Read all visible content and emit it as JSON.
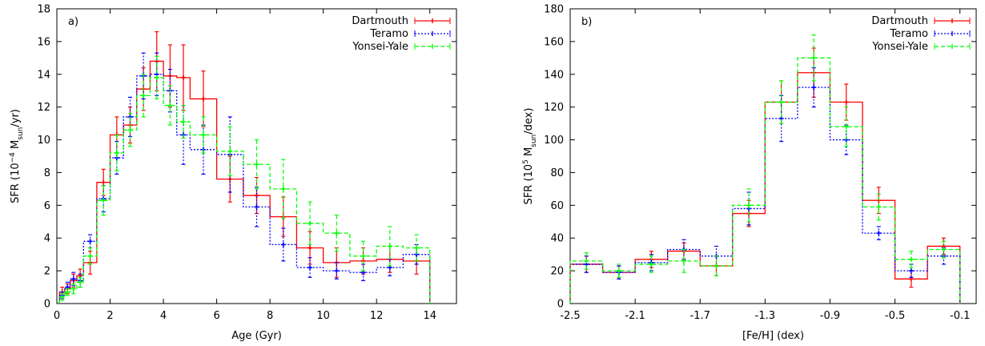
{
  "chart_data": [
    {
      "type": "line",
      "panel_label": "a)",
      "xlabel": "Age (Gyr)",
      "ylabel": {
        "pre": "SFR (10",
        "exp": "−4",
        "mid": " M",
        "sub": "sun",
        "post": "/yr)"
      },
      "xlim": [
        0,
        15
      ],
      "ylim": [
        0,
        18
      ],
      "xticks": [
        0,
        2,
        4,
        6,
        8,
        10,
        12,
        14
      ],
      "yticks": [
        0,
        2,
        4,
        6,
        8,
        10,
        12,
        14,
        16,
        18
      ],
      "legend_position": "top-right",
      "series": [
        {
          "name": "Dartmouth",
          "color": "#ff0000",
          "style": "solid",
          "edges": [
            0.1,
            0.3,
            0.5,
            0.75,
            1.0,
            1.5,
            2.0,
            2.5,
            3.0,
            3.5,
            4.0,
            4.5,
            5.0,
            6.0,
            7.0,
            8.0,
            9.0,
            10.0,
            11.0,
            12.0,
            13.0,
            14.0
          ],
          "values": [
            0.7,
            0.9,
            1.4,
            1.7,
            2.5,
            7.4,
            10.3,
            10.9,
            13.1,
            14.8,
            13.9,
            13.8,
            12.5,
            7.6,
            6.6,
            5.3,
            3.4,
            2.5,
            2.6,
            2.7,
            2.6
          ],
          "errors": [
            0.3,
            0.3,
            0.4,
            0.4,
            0.7,
            0.8,
            1.1,
            1.1,
            1.3,
            1.8,
            1.9,
            2.0,
            1.7,
            1.4,
            1.1,
            1.2,
            1.0,
            0.9,
            0.8,
            0.8,
            0.8
          ]
        },
        {
          "name": "Teramo",
          "color": "#0000ff",
          "style": "dotted",
          "edges": [
            0.1,
            0.3,
            0.5,
            0.75,
            1.0,
            1.5,
            2.0,
            2.5,
            3.0,
            3.5,
            4.0,
            4.5,
            5.0,
            6.0,
            7.0,
            8.0,
            9.0,
            10.0,
            11.0,
            12.0,
            13.0,
            14.0
          ],
          "values": [
            0.5,
            1.0,
            1.5,
            1.4,
            3.8,
            6.4,
            8.9,
            11.4,
            13.9,
            14.0,
            13.0,
            10.3,
            9.4,
            9.1,
            5.9,
            3.6,
            2.2,
            2.0,
            1.9,
            2.2,
            3.0
          ],
          "errors": [
            0.2,
            0.3,
            0.4,
            0.4,
            0.4,
            0.8,
            1.0,
            1.2,
            1.4,
            1.3,
            1.3,
            1.8,
            1.5,
            2.3,
            1.2,
            1.0,
            0.6,
            0.5,
            0.5,
            0.5,
            0.6
          ]
        },
        {
          "name": "Yonsei-Yale",
          "color": "#00ff00",
          "style": "dashed",
          "edges": [
            0.1,
            0.3,
            0.5,
            0.75,
            1.0,
            1.5,
            2.0,
            2.5,
            3.0,
            3.5,
            4.0,
            4.5,
            5.0,
            6.0,
            7.0,
            8.0,
            9.0,
            10.0,
            11.0,
            12.0,
            13.0,
            14.0
          ],
          "values": [
            0.4,
            0.7,
            0.9,
            1.3,
            2.9,
            6.3,
            9.2,
            10.6,
            12.7,
            13.8,
            12.1,
            11.1,
            10.3,
            9.3,
            8.5,
            7.0,
            4.9,
            4.3,
            2.9,
            3.5,
            3.4
          ],
          "errors": [
            0.2,
            0.2,
            0.3,
            0.3,
            0.5,
            0.9,
            1.1,
            1.0,
            1.3,
            1.3,
            1.2,
            1.0,
            1.1,
            1.5,
            1.5,
            1.8,
            1.3,
            1.1,
            0.9,
            1.2,
            0.8
          ]
        }
      ]
    },
    {
      "type": "line",
      "panel_label": "b)",
      "xlabel": "[Fe/H] (dex)",
      "ylabel": {
        "pre": "SFR (10",
        "exp": "5",
        "mid": " M",
        "sub": "sun",
        "post": "/dex)"
      },
      "xlim": [
        -2.5,
        0.0
      ],
      "ylim": [
        0,
        180
      ],
      "xticks": [
        -2.5,
        -2.1,
        -1.7,
        -1.3,
        -0.9,
        -0.5,
        -0.1
      ],
      "xtick_labels": [
        "-2.5",
        "-2.1",
        "-1.7",
        "-1.3",
        "-0.9",
        "-0.5",
        "-0.1"
      ],
      "yticks": [
        0,
        20,
        40,
        60,
        80,
        100,
        120,
        140,
        160,
        180
      ],
      "legend_position": "top-right",
      "series": [
        {
          "name": "Dartmouth",
          "color": "#ff0000",
          "style": "solid",
          "edges": [
            -2.5,
            -2.3,
            -2.1,
            -1.9,
            -1.7,
            -1.5,
            -1.3,
            -1.1,
            -0.9,
            -0.7,
            -0.5,
            -0.3,
            -0.1
          ],
          "values": [
            24,
            19,
            27,
            32,
            23,
            55,
            123,
            141,
            123,
            63,
            15,
            35
          ],
          "errors": [
            5,
            4,
            5,
            5,
            6,
            8,
            13,
            15,
            11,
            8,
            5,
            5
          ]
        },
        {
          "name": "Teramo",
          "color": "#0000ff",
          "style": "dotted",
          "edges": [
            -2.5,
            -2.3,
            -2.1,
            -1.9,
            -1.7,
            -1.5,
            -1.3,
            -1.1,
            -0.9,
            -0.7,
            -0.5,
            -0.3,
            -0.1
          ],
          "values": [
            24,
            19,
            25,
            33,
            29,
            58,
            113,
            132,
            100,
            43,
            20,
            29
          ],
          "errors": [
            5,
            4,
            5,
            6,
            6,
            10,
            14,
            12,
            9,
            4,
            4,
            5
          ]
        },
        {
          "name": "Yonsei-Yale",
          "color": "#00ff00",
          "style": "dashed",
          "edges": [
            -2.5,
            -2.3,
            -2.1,
            -1.9,
            -1.7,
            -1.5,
            -1.3,
            -1.1,
            -0.9,
            -0.7,
            -0.5,
            -0.3,
            -0.1
          ],
          "values": [
            26,
            20,
            24,
            26,
            23,
            60,
            123,
            150,
            108,
            59,
            27,
            33
          ],
          "errors": [
            5,
            4,
            5,
            7,
            6,
            10,
            13,
            14,
            12,
            8,
            5,
            5
          ]
        }
      ]
    }
  ]
}
